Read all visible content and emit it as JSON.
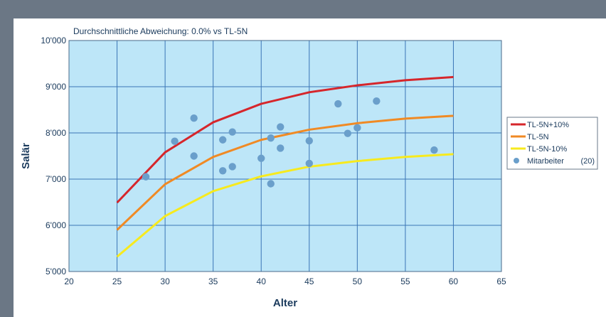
{
  "chart_data": {
    "type": "line",
    "title": "Durchschnittliche Abweichung: 0.0%  vs  TL-5N",
    "xlabel": "Alter",
    "ylabel": "Salär",
    "xlim": [
      20,
      65
    ],
    "ylim": [
      5000,
      10000
    ],
    "x_ticks": [
      20,
      25,
      30,
      35,
      40,
      45,
      50,
      55,
      60,
      65
    ],
    "x_tick_labels": [
      "20",
      "25",
      "30",
      "35",
      "40",
      "45",
      "50",
      "55",
      "60",
      "65"
    ],
    "y_ticks": [
      5000,
      6000,
      7000,
      8000,
      9000,
      10000
    ],
    "y_tick_labels": [
      "5'000",
      "6'000",
      "7'000",
      "8'000",
      "9'000",
      "10'000"
    ],
    "grid": true,
    "legend_position": "right",
    "background_color": "#bde6f8",
    "series": [
      {
        "name": "TL-5N+10%",
        "kind": "line",
        "color": "#d6262b",
        "x": [
          25,
          30,
          35,
          40,
          45,
          50,
          55,
          60
        ],
        "y": [
          6490,
          7580,
          8230,
          8630,
          8880,
          9030,
          9140,
          9210
        ]
      },
      {
        "name": "TL-5N",
        "kind": "line",
        "color": "#f08a24",
        "x": [
          25,
          30,
          35,
          40,
          45,
          50,
          55,
          60
        ],
        "y": [
          5900,
          6890,
          7480,
          7850,
          8070,
          8210,
          8310,
          8370
        ]
      },
      {
        "name": "TL-5N-10%",
        "kind": "line",
        "color": "#f7ea1e",
        "x": [
          25,
          30,
          35,
          40,
          45,
          50,
          55,
          60
        ],
        "y": [
          5320,
          6200,
          6740,
          7060,
          7270,
          7390,
          7480,
          7540
        ]
      },
      {
        "name": "Mitarbeiter",
        "kind": "scatter",
        "color": "#6a9fcb",
        "x": [
          28,
          31,
          33,
          33,
          36,
          36,
          37,
          37,
          40,
          41,
          41,
          42,
          42,
          45,
          45,
          48,
          49,
          50,
          52,
          58
        ],
        "y": [
          7050,
          7820,
          8320,
          7500,
          7850,
          7180,
          8020,
          7270,
          7450,
          6900,
          7890,
          8130,
          7670,
          7830,
          7340,
          8630,
          7990,
          8110,
          8690,
          7630
        ]
      }
    ],
    "legend": [
      {
        "label": "TL-5N+10%",
        "extra": ""
      },
      {
        "label": "TL-5N",
        "extra": ""
      },
      {
        "label": "TL-5N-10%",
        "extra": ""
      },
      {
        "label": "Mitarbeiter",
        "extra": "(20)"
      }
    ]
  }
}
